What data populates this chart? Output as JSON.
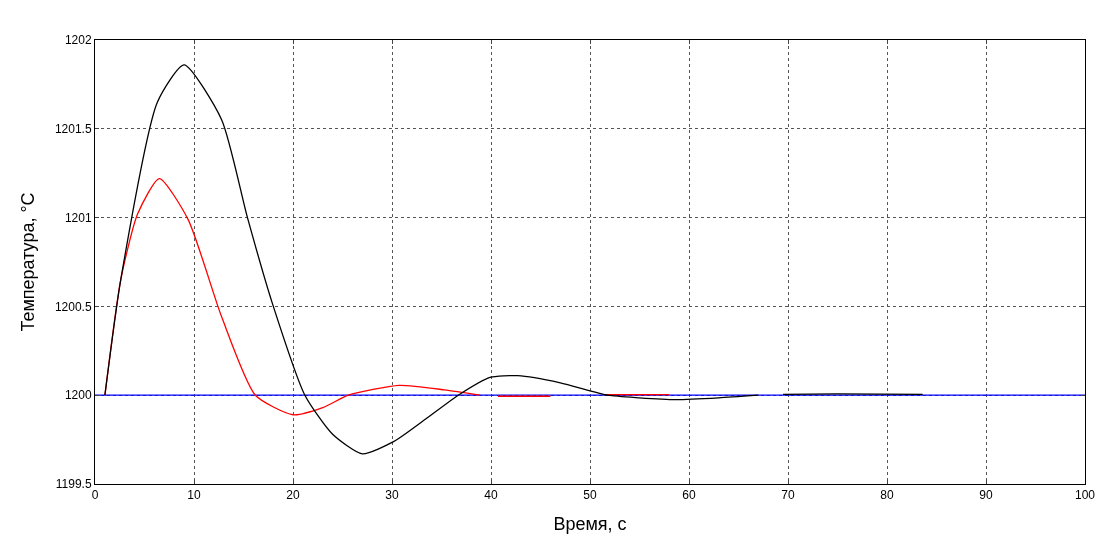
{
  "chart_data": {
    "type": "line",
    "xlabel": "Время, с",
    "ylabel": "Температура, °С",
    "xlim": [
      0,
      100
    ],
    "ylim": [
      1199.5,
      1202
    ],
    "xticks": [
      0,
      10,
      20,
      30,
      40,
      50,
      60,
      70,
      80,
      90,
      100
    ],
    "yticks": [
      1199.5,
      1200,
      1200.5,
      1201,
      1201.5,
      1202
    ],
    "grid": true,
    "line_style": "solid",
    "marker": "none",
    "series": [
      {
        "color": "#0000ff",
        "x": [
          0,
          100
        ],
        "values": [
          1200,
          1200
        ]
      },
      {
        "color": "#ff0000",
        "x": [
          1,
          2.6,
          4.3,
          6.5,
          9.4,
          12.8,
          16.2,
          20,
          23,
          25.6,
          30.7,
          35.3,
          38.9,
          null,
          40.7,
          46,
          null,
          51.6,
          58
        ],
        "values": [
          1200,
          1200.65,
          1201.02,
          1201.22,
          1200.99,
          1200.44,
          1200,
          1199.89,
          1199.93,
          1200,
          1200.055,
          1200.03,
          1200,
          null,
          1199.994,
          1199.994,
          null,
          1200.003,
          1200.003
        ]
      },
      {
        "color": "#000000",
        "x": [
          1,
          2.6,
          6.3,
          9,
          12.8,
          15.4,
          17.9,
          21.2,
          24,
          27,
          30.2,
          33.5,
          36.7,
          39.9,
          42.7,
          47,
          51.8,
          55,
          58.7,
          63,
          67,
          null,
          69.5,
          75,
          83.6
        ],
        "values": [
          1200,
          1200.65,
          1201.65,
          1201.86,
          1201.55,
          1201,
          1200.52,
          1200,
          1199.78,
          1199.67,
          1199.74,
          1199.87,
          1200,
          1200.1,
          1200.11,
          1200.07,
          1200,
          1199.985,
          1199.975,
          1199.985,
          1200,
          null,
          1200.005,
          1200.008,
          1200.005
        ]
      }
    ]
  }
}
